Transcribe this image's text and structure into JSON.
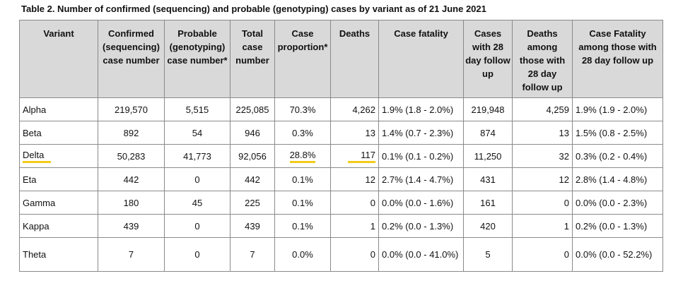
{
  "caption": "Table 2. Number of confirmed (sequencing) and probable (genotyping) cases by variant as of 21 June 2021",
  "headers": [
    "Variant",
    "Confirmed (sequencing) case number",
    "Probable (genotyping) case number*",
    "Total case number",
    "Case proportion*",
    "Deaths",
    "Case fatality",
    "Cases with 28 day follow up",
    "Deaths among those with 28 day follow up",
    "Case Fatality among those with 28 day follow up"
  ],
  "rows": [
    {
      "variant": "Alpha",
      "confirmed": "219,570",
      "probable": "5,515",
      "total": "225,085",
      "proportion": "70.3%",
      "deaths": "4,262",
      "fatality": "1.9% (1.8 - 2.0%)",
      "followup": "219,948",
      "deaths_followup": "4,259",
      "fatality_followup": "1.9% (1.9 - 2.0%)"
    },
    {
      "variant": "Beta",
      "confirmed": "892",
      "probable": "54",
      "total": "946",
      "proportion": "0.3%",
      "deaths": "13",
      "fatality": "1.4% (0.7 - 2.3%)",
      "followup": "874",
      "deaths_followup": "13",
      "fatality_followup": "1.5% (0.8 - 2.5%)"
    },
    {
      "variant": "Delta",
      "confirmed": "50,283",
      "probable": "41,773",
      "total": "92,056",
      "proportion": "28.8%",
      "deaths": "117",
      "fatality": "0.1% (0.1 - 0.2%)",
      "followup": "11,250",
      "deaths_followup": "32",
      "fatality_followup": "0.3% (0.2 - 0.4%)"
    },
    {
      "variant": "Eta",
      "confirmed": "442",
      "probable": "0",
      "total": "442",
      "proportion": "0.1%",
      "deaths": "12",
      "fatality": "2.7% (1.4 - 4.7%)",
      "followup": "431",
      "deaths_followup": "12",
      "fatality_followup": "2.8% (1.4 - 4.8%)"
    },
    {
      "variant": "Gamma",
      "confirmed": "180",
      "probable": "45",
      "total": "225",
      "proportion": "0.1%",
      "deaths": "0",
      "fatality": "0.0% (0.0 - 1.6%)",
      "followup": "161",
      "deaths_followup": "0",
      "fatality_followup": "0.0% (0.0 - 2.3%)"
    },
    {
      "variant": "Kappa",
      "confirmed": "439",
      "probable": "0",
      "total": "439",
      "proportion": "0.1%",
      "deaths": "1",
      "fatality": "0.2% (0.0 - 1.3%)",
      "followup": "420",
      "deaths_followup": "1",
      "fatality_followup": "0.2% (0.0 - 1.3%)"
    },
    {
      "variant": "Theta",
      "confirmed": "7",
      "probable": "0",
      "total": "7",
      "proportion": "0.0%",
      "deaths": "0",
      "fatality": "0.0% (0.0 - 41.0%)",
      "followup": "5",
      "deaths_followup": "0",
      "fatality_followup": "0.0% (0.0 - 52.2%)"
    }
  ],
  "highlight_color": "#f2cc1b",
  "header_background": "#d9d9d9"
}
